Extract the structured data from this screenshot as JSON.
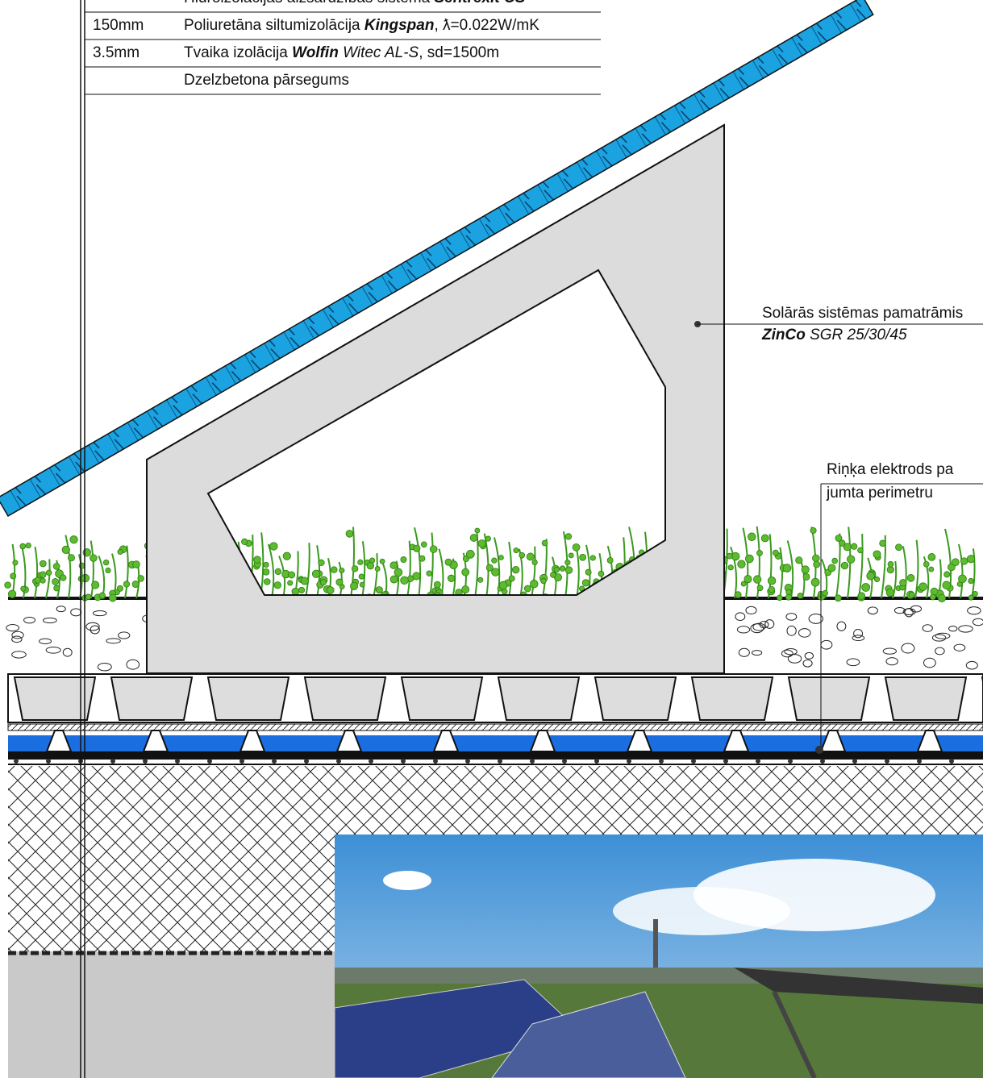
{
  "layers": [
    {
      "thickness": null,
      "parts": [
        {
          "text": "Hidroizolācijas aizsardzības sistēma ",
          "style": ""
        },
        {
          "text": "Sentrexit CS",
          "style": "bi"
        }
      ]
    },
    {
      "thickness": "150mm",
      "parts": [
        {
          "text": "Poliuretāna siltumizolācija ",
          "style": ""
        },
        {
          "text": "Kingspan",
          "style": "bi"
        },
        {
          "text": ", ƛ=0.022W/mK",
          "style": ""
        }
      ]
    },
    {
      "thickness": "3.5mm",
      "parts": [
        {
          "text": "Tvaika izolācija ",
          "style": ""
        },
        {
          "text": "Wolfin",
          "style": "bi"
        },
        {
          "text": " Witec AL-S",
          "style": "it"
        },
        {
          "text": ", sd=1500m",
          "style": ""
        }
      ]
    },
    {
      "thickness": null,
      "parts": [
        {
          "text": "Dzelzbetona pārsegums",
          "style": ""
        }
      ]
    }
  ],
  "frame_label": {
    "line1": "Solārās sistēmas pamatrāmis",
    "line2": [
      {
        "text": "ZinCo",
        "style": "bi"
      },
      {
        "text": " SGR 25/30/45",
        "style": "it"
      }
    ]
  },
  "electrode_label": {
    "line1": "Riņķa elektrods pa",
    "line2": "jumta perimetru"
  }
}
